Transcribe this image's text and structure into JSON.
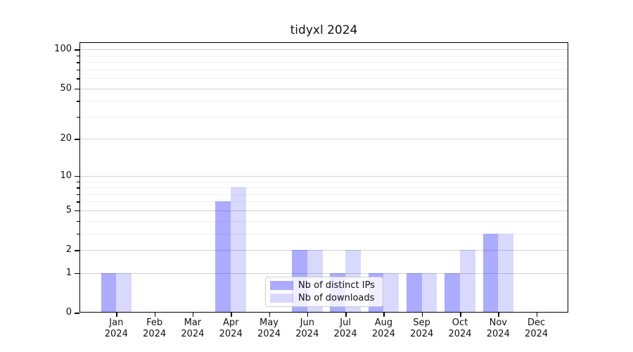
{
  "title": "tidyxl 2024",
  "colors": {
    "bar_distinct_ips_apparent": "#aaaaff",
    "bar_downloads_apparent": "#d9d9ff",
    "axis": "#000000",
    "grid_major": "#d2d2d2",
    "grid_minor": "#f0f0f0",
    "legend_border": "#cccccc"
  },
  "legend": {
    "position": "lower center"
  },
  "chart_data": {
    "type": "bar",
    "title": "tidyxl 2024",
    "categories": [
      "Jan 2024",
      "Feb 2024",
      "Mar 2024",
      "Apr 2024",
      "May 2024",
      "Jun 2024",
      "Jul 2024",
      "Aug 2024",
      "Sep 2024",
      "Oct 2024",
      "Nov 2024",
      "Dec 2024"
    ],
    "series": [
      {
        "name": "Nb of distinct IPs",
        "color": "#aaaaff",
        "fill_rgba": "rgba(0,0,255,0.33)",
        "values": [
          1,
          0,
          0,
          6,
          0,
          2,
          1,
          1,
          1,
          1,
          3,
          0
        ]
      },
      {
        "name": "Nb of downloads",
        "color": "#d9d9ff",
        "fill_rgba": "rgba(0,0,255,0.15)",
        "values": [
          1,
          0,
          0,
          8,
          0,
          2,
          2,
          1,
          1,
          2,
          3,
          0
        ]
      }
    ],
    "xlabel": "",
    "ylabel": "",
    "yscale": "log1p",
    "ylim": [
      0,
      110
    ],
    "yticks": [
      0,
      1,
      2,
      5,
      10,
      20,
      50,
      100
    ],
    "minor_gridlines": [
      3,
      4,
      6,
      7,
      8,
      9,
      30,
      40,
      60,
      70,
      80,
      90
    ],
    "grid": true,
    "legend_position": "lower center"
  }
}
